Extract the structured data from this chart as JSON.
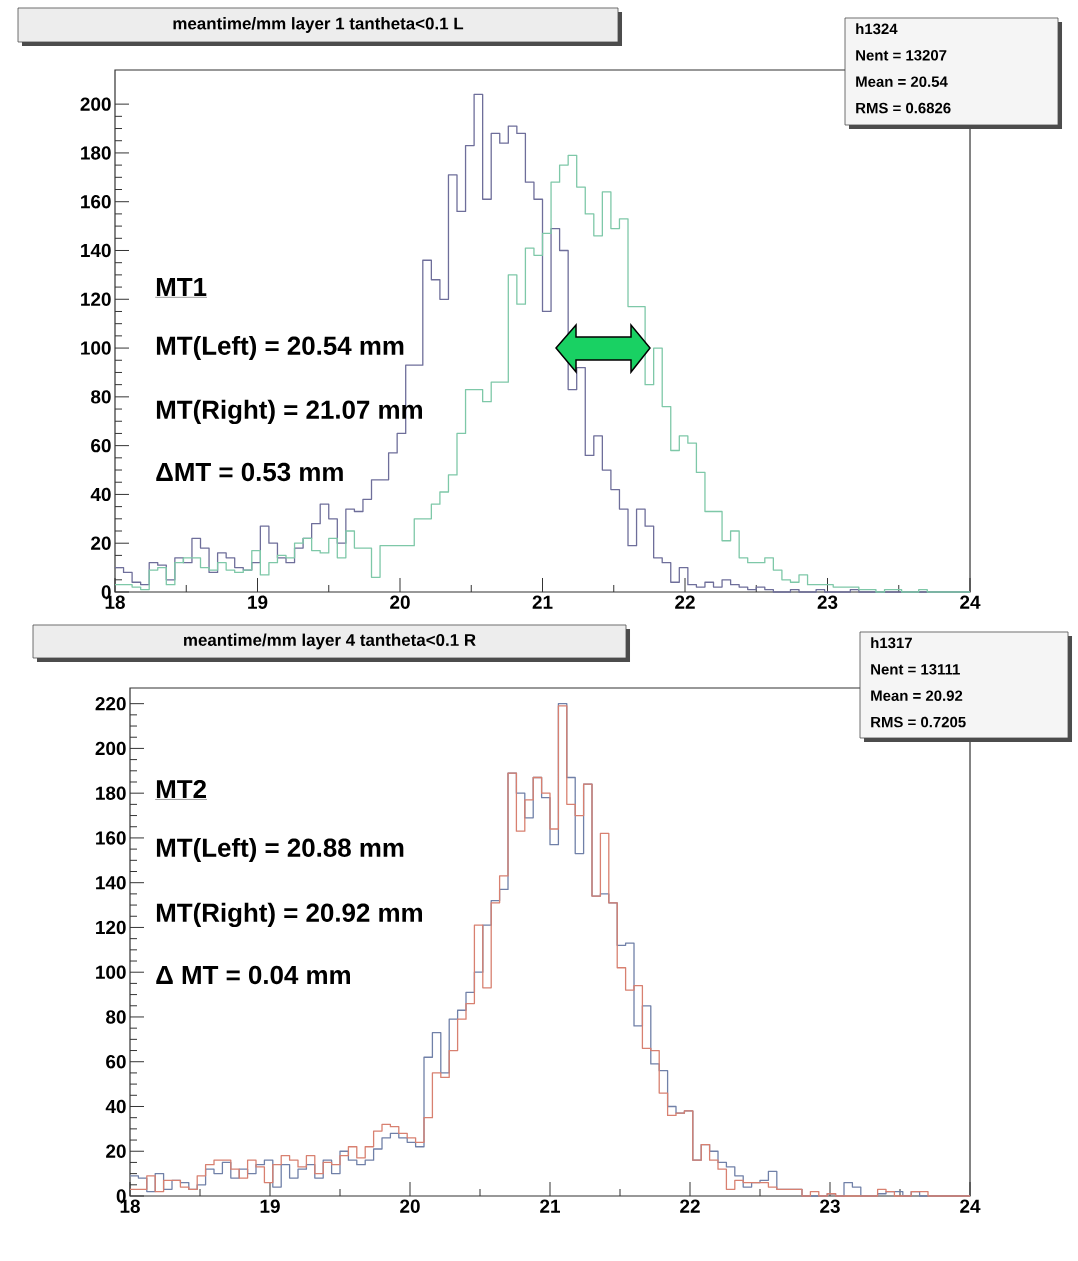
{
  "chart_data": [
    {
      "type": "histogram",
      "title": "meantime/mm layer 1 tantheta<0.1 L",
      "bins": [
        18,
        18.06,
        18.12,
        18.18,
        18.24,
        18.3,
        18.36,
        18.42,
        18.48,
        18.54,
        18.6,
        18.66,
        18.72,
        18.78,
        18.84,
        18.9,
        18.96,
        19.02,
        19.08,
        19.14,
        19.2,
        19.26,
        19.32,
        19.38,
        19.44,
        19.5,
        19.56,
        19.62,
        19.68,
        19.74,
        19.8,
        19.86,
        19.92,
        19.98,
        20.04,
        20.1,
        20.16,
        20.22,
        20.28,
        20.34,
        20.4,
        20.46,
        20.52,
        20.58,
        20.64,
        20.7,
        20.76,
        20.82,
        20.88,
        20.94,
        21,
        21.06,
        21.12,
        21.18,
        21.24,
        21.3,
        21.36,
        21.42,
        21.48,
        21.54,
        21.6,
        21.66,
        21.72,
        21.78,
        21.84,
        21.9,
        21.96,
        22.02,
        22.08,
        22.14,
        22.2,
        22.26,
        22.32,
        22.38,
        22.44,
        22.5,
        22.56,
        22.62,
        22.68,
        22.74,
        22.8,
        22.86,
        22.92,
        22.98,
        23.04,
        23.1,
        23.16,
        23.22,
        23.28,
        23.34,
        23.4,
        23.46,
        23.52,
        23.58,
        23.64,
        23.7,
        23.76,
        23.82,
        23.88,
        23.94,
        24
      ],
      "series": [
        {
          "color": "#6e6e9a",
          "values": [
            10,
            8,
            4,
            3,
            12,
            11,
            5,
            14,
            12,
            22,
            18,
            8,
            16,
            14,
            10,
            9,
            12,
            27,
            20,
            14,
            12,
            18,
            22,
            28,
            36,
            30,
            20,
            34,
            33,
            38,
            46,
            46,
            57,
            65,
            93,
            93,
            136,
            128,
            120,
            171,
            156,
            183,
            204,
            161,
            188,
            184,
            191,
            188,
            168,
            161,
            115,
            149,
            140,
            83,
            92,
            56,
            64,
            50,
            42,
            34,
            19,
            34,
            27,
            14,
            12,
            4,
            10,
            3,
            2,
            4,
            2,
            5,
            3,
            2,
            1,
            2,
            1,
            0,
            0,
            1,
            0,
            0,
            1,
            0,
            0,
            0,
            1,
            0,
            0,
            0,
            0,
            0,
            0,
            0,
            0,
            0,
            0,
            0,
            0,
            0
          ]
        },
        {
          "color": "#7ec8a8",
          "values": [
            3,
            3,
            2,
            1,
            9,
            10,
            3,
            12,
            14,
            14,
            10,
            9,
            12,
            9,
            8,
            9,
            17,
            7,
            12,
            15,
            14,
            20,
            22,
            17,
            16,
            22,
            14,
            25,
            18,
            18,
            6,
            19,
            19,
            19,
            19,
            30,
            30,
            36,
            41,
            48,
            65,
            83,
            83,
            78,
            86,
            86,
            130,
            118,
            141,
            138,
            147,
            168,
            175,
            179,
            166,
            155,
            146,
            164,
            149,
            153,
            117,
            117,
            85,
            100,
            76,
            58,
            64,
            61,
            49,
            33,
            33,
            21,
            25,
            14,
            12,
            12,
            14,
            9,
            5,
            4,
            7,
            3,
            3,
            3,
            2,
            2,
            2,
            1,
            1,
            0,
            1,
            1,
            0,
            0,
            1,
            0,
            0,
            0,
            0,
            0
          ]
        }
      ],
      "xlim": [
        18,
        24
      ],
      "ylim": [
        0,
        214
      ],
      "xticks": [
        18,
        19,
        20,
        21,
        22,
        23,
        24
      ],
      "yticks": [
        0,
        20,
        40,
        60,
        80,
        100,
        120,
        140,
        160,
        180,
        200
      ],
      "annotations": [
        "h1324",
        "Nent = 13207",
        "Mean = 20.54",
        "RMS = 0.6826",
        "MT1",
        "MT(Left) = 20.54 mm",
        "MT(Right) = 21.07 mm",
        "ΔMT = 0.53 mm"
      ]
    },
    {
      "type": "histogram",
      "title": "meantime/mm layer 4 tantheta<0.1 R",
      "bins": [
        18,
        18.06,
        18.12,
        18.18,
        18.24,
        18.3,
        18.36,
        18.42,
        18.48,
        18.54,
        18.6,
        18.66,
        18.72,
        18.78,
        18.84,
        18.9,
        18.96,
        19.02,
        19.08,
        19.14,
        19.2,
        19.26,
        19.32,
        19.38,
        19.44,
        19.5,
        19.56,
        19.62,
        19.68,
        19.74,
        19.8,
        19.86,
        19.92,
        19.98,
        20.04,
        20.1,
        20.16,
        20.22,
        20.28,
        20.34,
        20.4,
        20.46,
        20.52,
        20.58,
        20.64,
        20.7,
        20.76,
        20.82,
        20.88,
        20.94,
        21,
        21.06,
        21.12,
        21.18,
        21.24,
        21.3,
        21.36,
        21.42,
        21.48,
        21.54,
        21.6,
        21.66,
        21.72,
        21.78,
        21.84,
        21.9,
        21.96,
        22.02,
        22.08,
        22.14,
        22.2,
        22.26,
        22.32,
        22.38,
        22.44,
        22.5,
        22.56,
        22.62,
        22.68,
        22.74,
        22.8,
        22.86,
        22.92,
        22.98,
        23.04,
        23.1,
        23.16,
        23.22,
        23.28,
        23.34,
        23.4,
        23.46,
        23.52,
        23.58,
        23.64,
        23.7,
        23.76,
        23.82,
        23.88,
        23.94,
        24
      ],
      "series": [
        {
          "color": "#7080a8",
          "values": [
            9,
            8,
            2,
            10,
            3,
            7,
            6,
            3,
            5,
            12,
            10,
            15,
            8,
            12,
            10,
            14,
            16,
            4,
            14,
            8,
            12,
            14,
            8,
            16,
            10,
            20,
            16,
            14,
            16,
            21,
            26,
            28,
            26,
            24,
            22,
            62,
            73,
            55,
            79,
            83,
            91,
            100,
            121,
            132,
            137,
            189,
            180,
            169,
            187,
            178,
            157,
            220,
            187,
            153,
            184,
            134,
            135,
            131,
            112,
            113,
            76,
            85,
            59,
            56,
            40,
            37,
            38,
            16,
            23,
            20,
            15,
            13,
            9,
            4,
            6,
            7,
            11,
            3,
            3,
            3,
            0,
            0,
            0,
            1,
            0,
            6,
            4,
            0,
            0,
            1,
            2,
            2,
            0,
            2,
            0,
            0,
            0,
            0,
            0,
            0
          ]
        },
        {
          "color": "#d88070",
          "values": [
            3,
            3,
            9,
            2,
            7,
            7,
            4,
            3,
            9,
            14,
            16,
            16,
            12,
            8,
            16,
            13,
            6,
            14,
            18,
            16,
            13,
            18,
            10,
            15,
            14,
            18,
            22,
            17,
            22,
            29,
            32,
            31,
            28,
            26,
            24,
            35,
            55,
            53,
            65,
            79,
            86,
            121,
            93,
            131,
            143,
            189,
            163,
            177,
            187,
            180,
            164,
            219,
            175,
            170,
            184,
            134,
            162,
            131,
            102,
            92,
            94,
            66,
            65,
            46,
            36,
            37,
            38,
            16,
            23,
            16,
            12,
            3,
            7,
            6,
            6,
            6,
            4,
            3,
            3,
            3,
            0,
            2,
            0,
            1,
            0,
            0,
            0,
            0,
            0,
            3,
            2,
            0,
            0,
            2,
            2,
            0,
            0,
            0,
            0,
            0
          ]
        }
      ],
      "xlim": [
        18,
        24
      ],
      "ylim": [
        0,
        227
      ],
      "xticks": [
        18,
        19,
        20,
        21,
        22,
        23,
        24
      ],
      "yticks": [
        0,
        20,
        40,
        60,
        80,
        100,
        120,
        140,
        160,
        180,
        200,
        220
      ],
      "annotations": [
        "h1317",
        "Nent = 13111",
        "Mean = 20.92",
        "RMS = 0.7205",
        "MT2",
        "MT(Left) = 20.88 mm",
        "MT(Right) = 20.92 mm",
        "Δ MT = 0.04 mm"
      ]
    }
  ]
}
